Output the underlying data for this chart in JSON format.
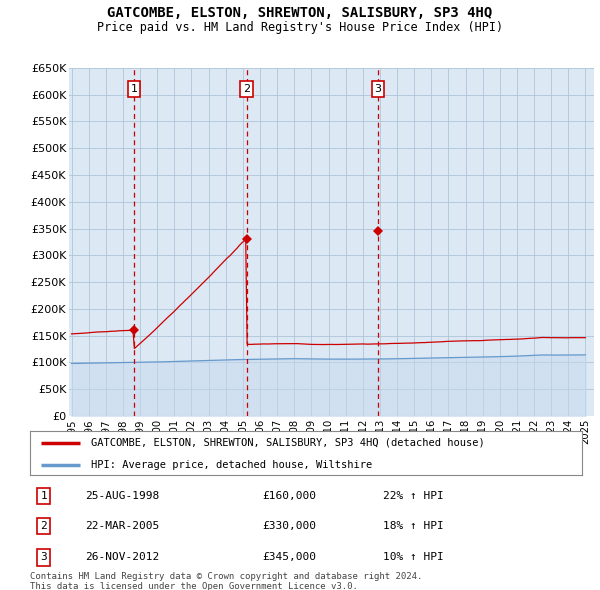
{
  "title": "GATCOMBE, ELSTON, SHREWTON, SALISBURY, SP3 4HQ",
  "subtitle": "Price paid vs. HM Land Registry's House Price Index (HPI)",
  "ylim": [
    0,
    650000
  ],
  "yticks": [
    0,
    50000,
    100000,
    150000,
    200000,
    250000,
    300000,
    350000,
    400000,
    450000,
    500000,
    550000,
    600000,
    650000
  ],
  "sale_year_nums": [
    1998.646,
    2005.22,
    2012.9
  ],
  "sale_prices": [
    160000,
    330000,
    345000
  ],
  "sale_labels": [
    "1",
    "2",
    "3"
  ],
  "sale_info": [
    {
      "label": "1",
      "date": "25-AUG-1998",
      "price": "£160,000",
      "hpi": "22% ↑ HPI"
    },
    {
      "label": "2",
      "date": "22-MAR-2005",
      "price": "£330,000",
      "hpi": "18% ↑ HPI"
    },
    {
      "label": "3",
      "date": "26-NOV-2012",
      "price": "£345,000",
      "hpi": "10% ↑ HPI"
    }
  ],
  "legend_line1": "GATCOMBE, ELSTON, SHREWTON, SALISBURY, SP3 4HQ (detached house)",
  "legend_line2": "HPI: Average price, detached house, Wiltshire",
  "footer1": "Contains HM Land Registry data © Crown copyright and database right 2024.",
  "footer2": "This data is licensed under the Open Government Licence v3.0.",
  "line_color": "#cc0000",
  "hpi_color": "#6699cc",
  "chart_bg": "#dce9f5",
  "fig_bg": "#ffffff",
  "grid_color": "#aec4d8",
  "dot_color": "#cc0000",
  "vline_color": "#cc0000",
  "label_box_color": "#cc0000"
}
